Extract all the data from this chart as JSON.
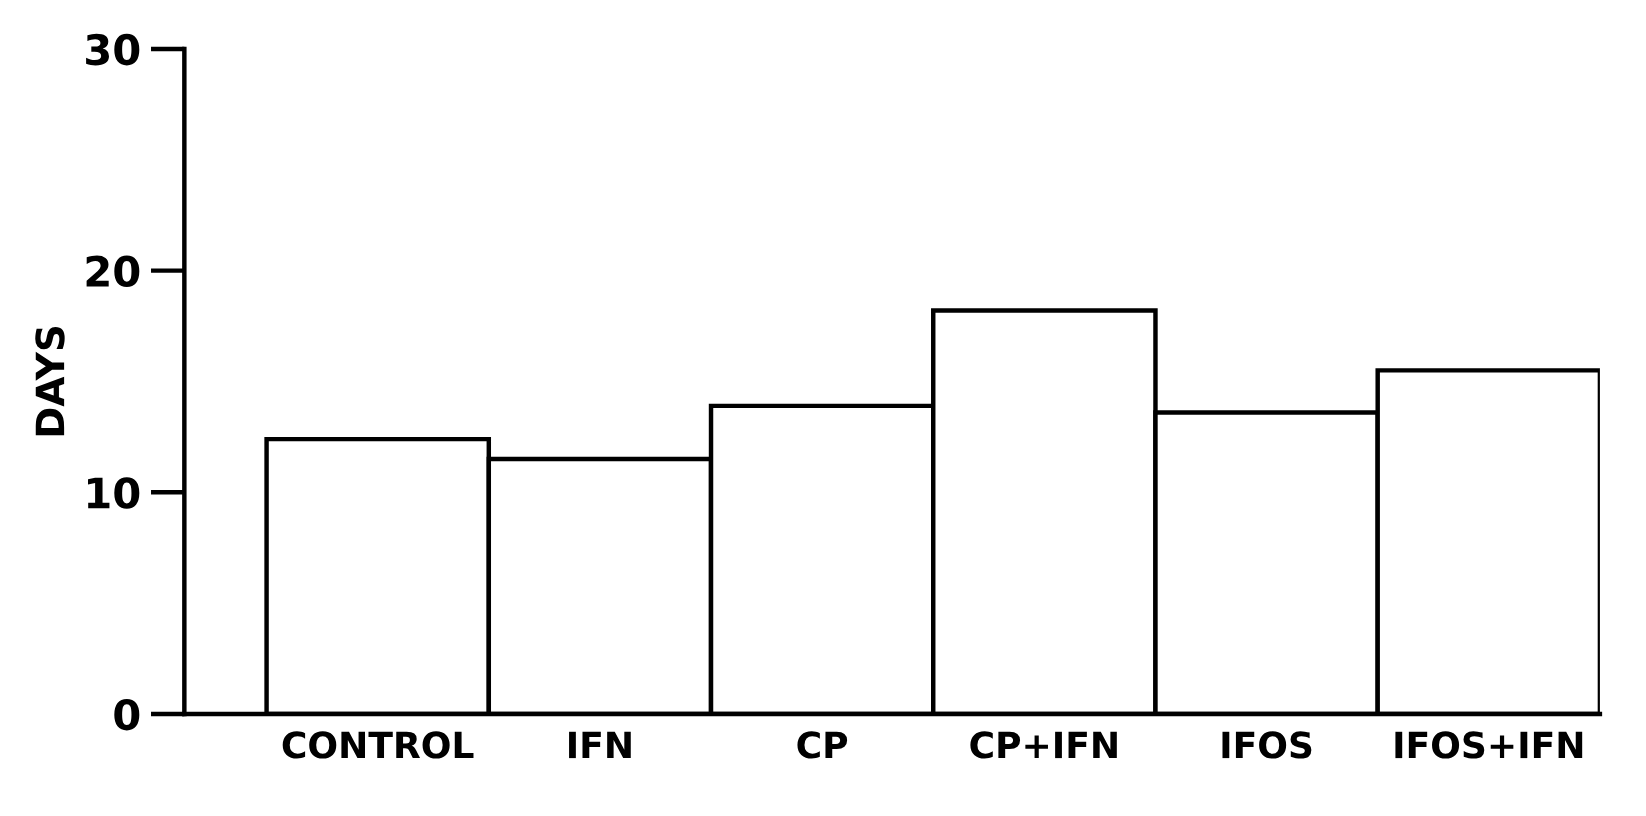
{
  "chart_data": {
    "type": "bar",
    "ylabel": "DAYS",
    "categories": [
      "CONTROL",
      "IFN",
      "CP",
      "CP+IFN",
      "IFOS",
      "IFOS+IFN"
    ],
    "values": [
      12.4,
      11.5,
      13.9,
      18.2,
      13.6,
      15.5
    ],
    "color": "#ffffff",
    "ylim": [
      0,
      30
    ],
    "yticks": [
      0,
      10,
      20,
      30
    ],
    "grid": false,
    "legend": false
  }
}
